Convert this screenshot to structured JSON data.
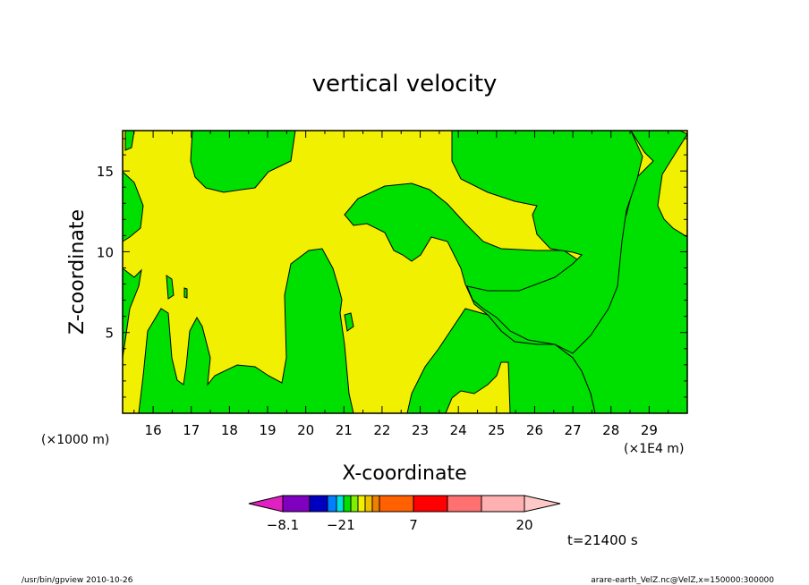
{
  "chart_data": {
    "type": "heatmap",
    "title": "vertical velocity",
    "xlabel": "X-coordinate",
    "ylabel": "Z-coordinate",
    "x_unit": "(×1E4 m)",
    "y_unit": "(×1000 m)",
    "xlim": [
      15.2,
      30.0
    ],
    "ylim": [
      0,
      17.5
    ],
    "x_ticks": [
      16,
      17,
      18,
      19,
      20,
      21,
      22,
      23,
      24,
      25,
      26,
      27,
      28,
      29
    ],
    "y_ticks": [
      5,
      10,
      15
    ],
    "grid": false,
    "colorbar": {
      "levels": [
        -8.1,
        -2,
        1,
        7,
        20
      ],
      "level_labels": [
        "−8.1",
        "−2",
        "1",
        "7",
        "20"
      ],
      "colors": [
        "#e020c0",
        "#8000c0",
        "#0000c0",
        "#0080ff",
        "#00e0e0",
        "#00e000",
        "#80f000",
        "#f0f000",
        "#f0c000",
        "#f08000",
        "#ff6000",
        "#ff0000",
        "#ff7070",
        "#ffb0b0",
        "#ffc8c8"
      ]
    },
    "regions": [
      {
        "name": "green",
        "color": "#00e000"
      },
      {
        "name": "yellow",
        "color": "#f0f000"
      }
    ],
    "time_label": "t=21400 s"
  },
  "footer": {
    "left": "/usr/bin/gpview   2010-10-26",
    "right": "arare-earth_VelZ.nc@VelZ,x=150000:300000"
  }
}
